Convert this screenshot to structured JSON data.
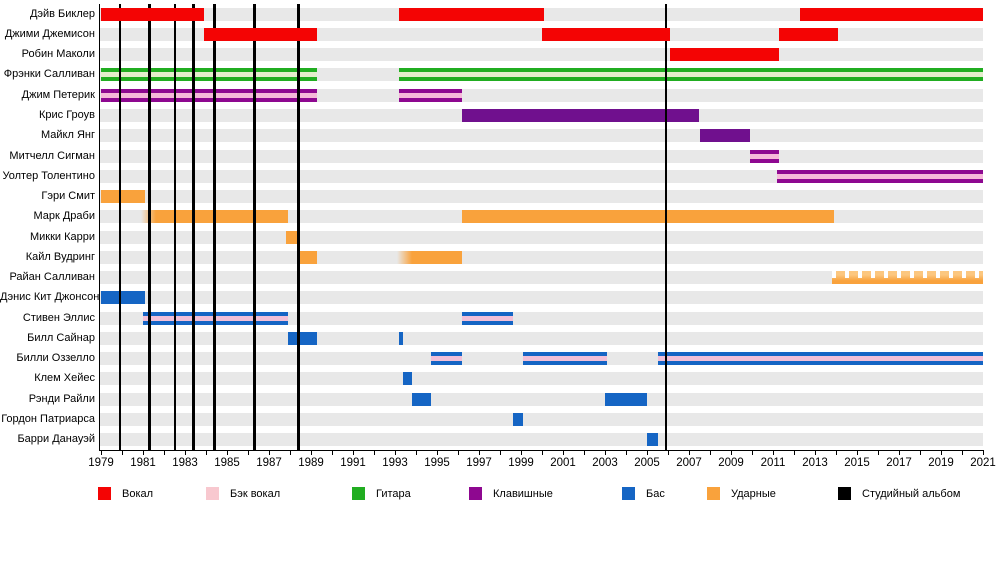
{
  "chart_data": {
    "type": "gantt-timeline",
    "title": "",
    "x_axis": {
      "start_year": 1979,
      "end_year": 2021,
      "tick_every_years": 1,
      "label_every_years": 2,
      "tick_labels": [
        "1979",
        "1981",
        "1983",
        "1985",
        "1987",
        "1989",
        "1991",
        "1993",
        "1995",
        "1997",
        "1999",
        "2001",
        "2003",
        "2005",
        "2007",
        "2009",
        "2011",
        "2013",
        "2015",
        "2017",
        "2019",
        "2021"
      ]
    },
    "rows": [
      {
        "name": "Дэйв Биклер",
        "segments": [
          {
            "start": 1979.0,
            "end": 1983.9,
            "style": "vocals"
          },
          {
            "start": 1993.2,
            "end": 2000.1,
            "style": "vocals"
          },
          {
            "start": 2012.3,
            "end": 2021.0,
            "style": "vocals"
          }
        ]
      },
      {
        "name": "Джими Джемисон",
        "segments": [
          {
            "start": 1983.9,
            "end": 1989.3,
            "style": "vocals"
          },
          {
            "start": 2000.0,
            "end": 2006.1,
            "style": "vocals"
          },
          {
            "start": 2011.3,
            "end": 2014.1,
            "style": "vocals"
          }
        ]
      },
      {
        "name": "Робин Маколи",
        "segments": [
          {
            "start": 2006.1,
            "end": 2011.3,
            "style": "vocals"
          }
        ]
      },
      {
        "name": "Фрэнки Салливан",
        "segments": [
          {
            "start": 1979.0,
            "end": 1989.3,
            "style": "guitar-backing"
          },
          {
            "start": 1993.2,
            "end": 2021.0,
            "style": "guitar-backing"
          }
        ]
      },
      {
        "name": "Джим Петерик",
        "segments": [
          {
            "start": 1979.0,
            "end": 1989.3,
            "style": "keys-backing"
          },
          {
            "start": 1993.2,
            "end": 1996.2,
            "style": "keys-backing"
          }
        ]
      },
      {
        "name": "Крис Гроув",
        "segments": [
          {
            "start": 1996.2,
            "end": 2007.5,
            "style": "keys"
          }
        ]
      },
      {
        "name": "Майкл Янг",
        "segments": [
          {
            "start": 2007.5,
            "end": 2009.9,
            "style": "keys"
          }
        ]
      },
      {
        "name": "Митчелл Сигман",
        "segments": [
          {
            "start": 2009.9,
            "end": 2011.3,
            "style": "keys-backing"
          }
        ]
      },
      {
        "name": "Уолтер Толентино",
        "segments": [
          {
            "start": 2011.2,
            "end": 2021.0,
            "style": "keys-backing"
          }
        ]
      },
      {
        "name": "Гэри Смит",
        "segments": [
          {
            "start": 1979.0,
            "end": 1981.1,
            "style": "drums"
          }
        ]
      },
      {
        "name": "Марк Драби",
        "segments": [
          {
            "start": 1980.9,
            "end": 1987.9,
            "style": "drums-fade"
          },
          {
            "start": 1996.2,
            "end": 2013.9,
            "style": "drums"
          }
        ]
      },
      {
        "name": "Микки Карри",
        "segments": [
          {
            "start": 1987.8,
            "end": 1988.4,
            "style": "drums"
          }
        ]
      },
      {
        "name": "Кайл Вудринг",
        "segments": [
          {
            "start": 1988.4,
            "end": 1989.3,
            "style": "drums"
          },
          {
            "start": 1993.1,
            "end": 1996.2,
            "style": "drums-fade"
          }
        ]
      },
      {
        "name": "Райан Салливан",
        "segments": [
          {
            "start": 2013.8,
            "end": 2021.0,
            "style": "drums-dashed"
          }
        ]
      },
      {
        "name": "Дэнис Кит Джонсон",
        "segments": [
          {
            "start": 1979.0,
            "end": 1981.1,
            "style": "bass"
          }
        ]
      },
      {
        "name": "Стивен Эллис",
        "segments": [
          {
            "start": 1981.0,
            "end": 1987.9,
            "style": "bass-backing"
          },
          {
            "start": 1996.2,
            "end": 1998.6,
            "style": "bass-backing"
          }
        ]
      },
      {
        "name": "Билл Сайнар",
        "segments": [
          {
            "start": 1987.9,
            "end": 1989.3,
            "style": "bass"
          },
          {
            "start": 1993.2,
            "end": 1993.4,
            "style": "bass"
          }
        ]
      },
      {
        "name": "Билли Оззелло",
        "segments": [
          {
            "start": 1994.7,
            "end": 1996.2,
            "style": "bass-backing"
          },
          {
            "start": 1999.1,
            "end": 2003.1,
            "style": "bass-backing"
          },
          {
            "start": 2005.5,
            "end": 2021.0,
            "style": "bass-backing"
          }
        ]
      },
      {
        "name": "Клем Хейес",
        "segments": [
          {
            "start": 1993.4,
            "end": 1993.8,
            "style": "bass"
          }
        ]
      },
      {
        "name": "Рэнди Райли",
        "segments": [
          {
            "start": 1993.8,
            "end": 1994.7,
            "style": "bass"
          },
          {
            "start": 2003.0,
            "end": 2005.0,
            "style": "bass"
          }
        ]
      },
      {
        "name": "Гордон Патриарса",
        "segments": [
          {
            "start": 1998.6,
            "end": 1999.1,
            "style": "bass"
          }
        ]
      },
      {
        "name": "Барри Данауэй",
        "segments": [
          {
            "start": 2005.0,
            "end": 2005.5,
            "style": "bass"
          }
        ]
      }
    ],
    "album_lines_years": [
      1979.9,
      1981.3,
      1982.5,
      1983.4,
      1984.4,
      1986.3,
      1988.4,
      2005.9
    ],
    "legend": [
      {
        "label": "Вокал",
        "color": "#f40404"
      },
      {
        "label": "Бэк вокал",
        "color": "#f8c8cf"
      },
      {
        "label": "Гитара",
        "color": "#21ad21"
      },
      {
        "label": "Клавишные",
        "color": "#8e0890"
      },
      {
        "label": "Бас",
        "color": "#1565c4"
      },
      {
        "label": "Ударные",
        "color": "#f9a23c"
      },
      {
        "label": "Студийный альбом",
        "color": "#000000"
      }
    ],
    "colors": {
      "vocals": "#f40404",
      "backing_vocals": "#f8c8cf",
      "guitar": "#21ad21",
      "guitar_backing_stripe": "#e4edcc",
      "keyboards": "#8e0890",
      "keyboards_solid": "#70108e",
      "bass": "#1565c4",
      "drums": "#f9a23c",
      "album_line": "#000000",
      "row_band": "#e8e8e8"
    }
  }
}
